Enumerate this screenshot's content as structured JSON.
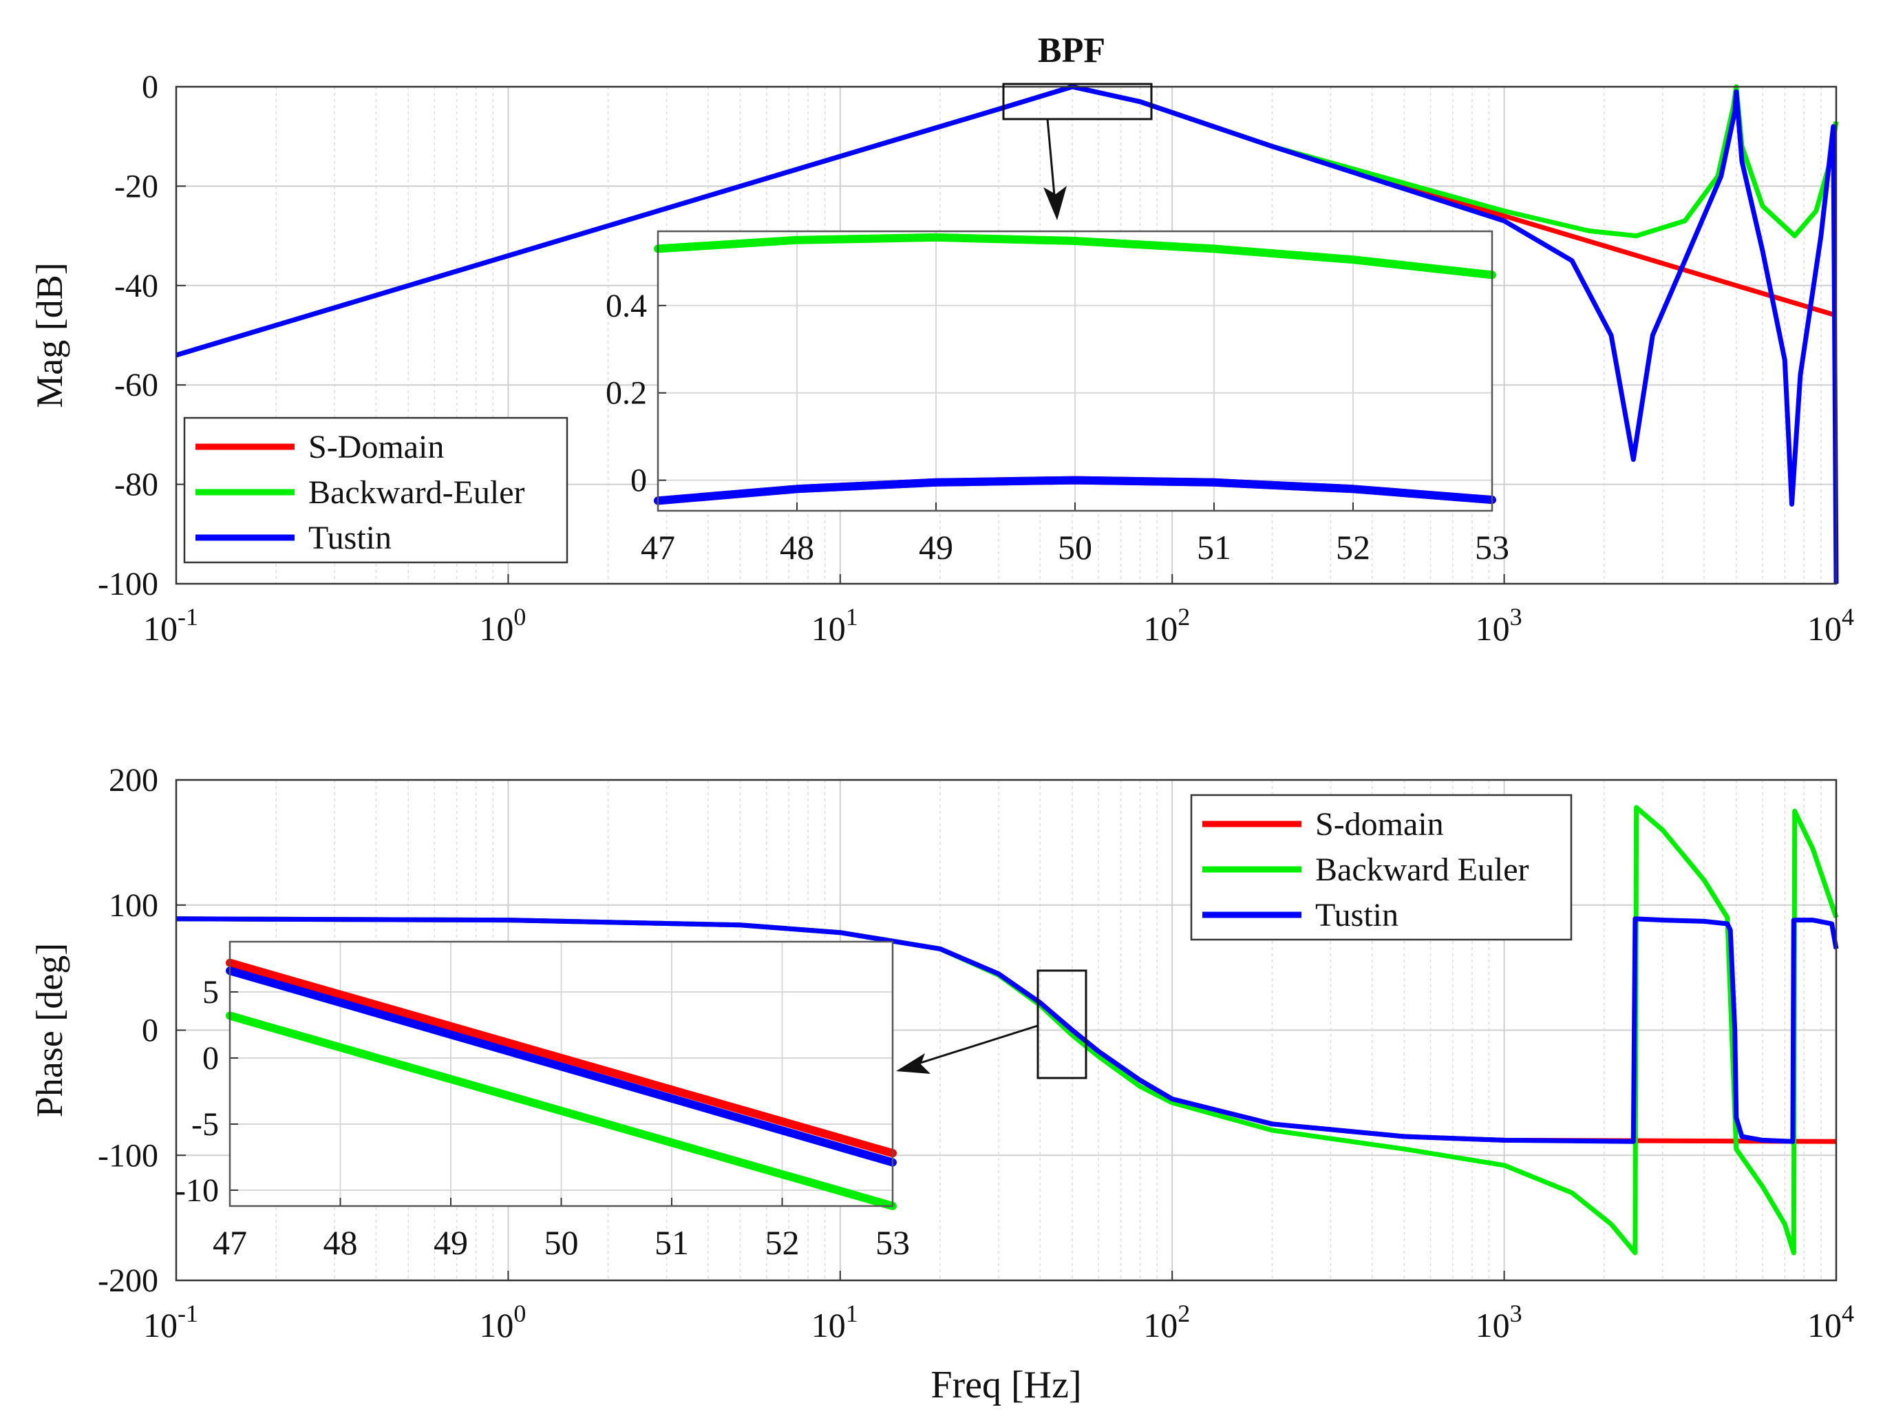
{
  "chart_data": [
    {
      "id": "magnitude",
      "type": "line",
      "title": "BPF",
      "xlabel": "",
      "ylabel": "Mag [dB]",
      "xscale": "log",
      "xlim": [
        0.1,
        10000
      ],
      "ylim": [
        -100,
        0
      ],
      "xticks": [
        {
          "base": "10",
          "exp": "-1"
        },
        {
          "base": "10",
          "exp": "0"
        },
        {
          "base": "10",
          "exp": "1"
        },
        {
          "base": "10",
          "exp": "2"
        },
        {
          "base": "10",
          "exp": "3"
        },
        {
          "base": "10",
          "exp": "4"
        }
      ],
      "yticks": [
        "0",
        "-20",
        "-40",
        "-60",
        "-80",
        "-100"
      ],
      "grid": true,
      "legend_position": "bottom-left",
      "series": [
        {
          "name": "S-Domain",
          "color": "#ff0000",
          "x": [
            0.1,
            1,
            10,
            30,
            50,
            80,
            200,
            1000,
            2000,
            5000,
            10000
          ],
          "y": [
            -54,
            -34,
            -14,
            -4.5,
            0,
            -3,
            -12,
            -26,
            -32,
            -40,
            -46
          ]
        },
        {
          "name": "Backward-Euler",
          "color": "#00ee00",
          "x": [
            0.1,
            1,
            10,
            30,
            50,
            80,
            200,
            1000,
            1800,
            2500,
            3500,
            4400,
            4900,
            5000,
            5200,
            6000,
            7500,
            8700,
            9600,
            10000
          ],
          "y": [
            -54,
            -34,
            -14,
            -4.5,
            0,
            -3,
            -12,
            -25,
            -29,
            -30,
            -27,
            -18,
            -4,
            0,
            -12,
            -24,
            -30,
            -25,
            -15,
            -7
          ]
        },
        {
          "name": "Tustin",
          "color": "#0000ff",
          "x": [
            0.1,
            1,
            10,
            30,
            50,
            80,
            200,
            1000,
            1600,
            2100,
            2450,
            2800,
            3500,
            4500,
            4950,
            5000,
            5200,
            6000,
            7000,
            7350,
            7800,
            9000,
            9800,
            10000
          ],
          "y": [
            -54,
            -34,
            -14,
            -4.5,
            0,
            -3,
            -12,
            -27,
            -35,
            -50,
            -75,
            -50,
            -35,
            -18,
            -5,
            -1,
            -15,
            -33,
            -55,
            -84,
            -58,
            -30,
            -8,
            -100
          ]
        }
      ],
      "inset": {
        "xlim": [
          47,
          53
        ],
        "ylim": [
          -0.07,
          0.57
        ],
        "xticks": [
          "47",
          "48",
          "49",
          "50",
          "51",
          "52",
          "53"
        ],
        "yticks": [
          "0",
          "0.2",
          "0.4"
        ],
        "series": [
          {
            "name": "S-Domain",
            "color": "#ff0000",
            "x": [
              47,
              48,
              49,
              50,
              51,
              52,
              53
            ],
            "y": [
              -0.047,
              -0.02,
              -0.005,
              0.0,
              -0.005,
              -0.02,
              -0.045
            ]
          },
          {
            "name": "Backward-Euler",
            "color": "#00ee00",
            "x": [
              47,
              48,
              49,
              50,
              51,
              52,
              53
            ],
            "y": [
              0.53,
              0.55,
              0.556,
              0.548,
              0.53,
              0.505,
              0.47
            ]
          },
          {
            "name": "Tustin",
            "color": "#0000ff",
            "x": [
              47,
              48,
              49,
              50,
              51,
              52,
              53
            ],
            "y": [
              -0.047,
              -0.02,
              -0.005,
              0.0,
              -0.005,
              -0.02,
              -0.045
            ]
          }
        ]
      }
    },
    {
      "id": "phase",
      "type": "line",
      "title": "",
      "xlabel": "Freq [Hz]",
      "ylabel": "Phase [deg]",
      "xscale": "log",
      "xlim": [
        0.1,
        10000
      ],
      "ylim": [
        -200,
        200
      ],
      "xticks": [
        {
          "base": "10",
          "exp": "-1"
        },
        {
          "base": "10",
          "exp": "0"
        },
        {
          "base": "10",
          "exp": "1"
        },
        {
          "base": "10",
          "exp": "2"
        },
        {
          "base": "10",
          "exp": "3"
        },
        {
          "base": "10",
          "exp": "4"
        }
      ],
      "yticks": [
        "200",
        "100",
        "0",
        "-100",
        "-200"
      ],
      "grid": true,
      "legend_position": "top-right",
      "series": [
        {
          "name": "S-domain",
          "color": "#ff0000",
          "x": [
            0.1,
            1,
            5,
            10,
            20,
            30,
            40,
            50,
            60,
            80,
            100,
            200,
            500,
            1000,
            10000
          ],
          "y": [
            89,
            88,
            84,
            78,
            65,
            45,
            22,
            0,
            -17,
            -40,
            -55,
            -75,
            -85,
            -88,
            -89
          ]
        },
        {
          "name": "Backward Euler",
          "color": "#00ee00",
          "x": [
            0.1,
            1,
            5,
            10,
            20,
            30,
            40,
            50,
            60,
            80,
            100,
            200,
            500,
            1000,
            1600,
            2100,
            2480,
            2500,
            3000,
            4000,
            4700,
            5000,
            6000,
            7000,
            7450,
            7500,
            8500,
            10000
          ],
          "y": [
            89,
            88,
            84,
            78,
            65,
            44,
            20,
            -4,
            -21,
            -45,
            -58,
            -80,
            -95,
            -108,
            -130,
            -155,
            -178,
            178,
            160,
            120,
            90,
            -95,
            -125,
            -155,
            -178,
            175,
            145,
            90
          ]
        },
        {
          "name": "Tustin",
          "color": "#0000ff",
          "x": [
            0.1,
            1,
            5,
            10,
            20,
            30,
            40,
            50,
            60,
            80,
            100,
            200,
            500,
            1000,
            2450,
            2480,
            3000,
            4000,
            4700,
            4800,
            4950,
            5000,
            5200,
            6000,
            7400,
            7450,
            8500,
            9700,
            10000
          ],
          "y": [
            89,
            88,
            84,
            78,
            65,
            45,
            22,
            0,
            -17,
            -40,
            -55,
            -75,
            -85,
            -88,
            -89,
            89,
            88,
            87,
            85,
            80,
            0,
            -70,
            -85,
            -88,
            -89,
            88,
            88,
            85,
            65
          ]
        }
      ],
      "inset": {
        "xlim": [
          47,
          53
        ],
        "ylim": [
          -11.2,
          8.8
        ],
        "xticks": [
          "47",
          "48",
          "49",
          "50",
          "51",
          "52",
          "53"
        ],
        "yticks": [
          "5",
          "0",
          "-5",
          "-10"
        ],
        "series": [
          {
            "name": "S-domain",
            "color": "#ff0000",
            "x": [
              47,
              53
            ],
            "y": [
              7.2,
              -7.2
            ]
          },
          {
            "name": "Backward Euler",
            "color": "#00ee00",
            "x": [
              47,
              53
            ],
            "y": [
              3.2,
              -11.2
            ]
          },
          {
            "name": "Tustin",
            "color": "#0000ff",
            "x": [
              47,
              53
            ],
            "y": [
              6.6,
              -7.9
            ]
          }
        ]
      }
    }
  ]
}
